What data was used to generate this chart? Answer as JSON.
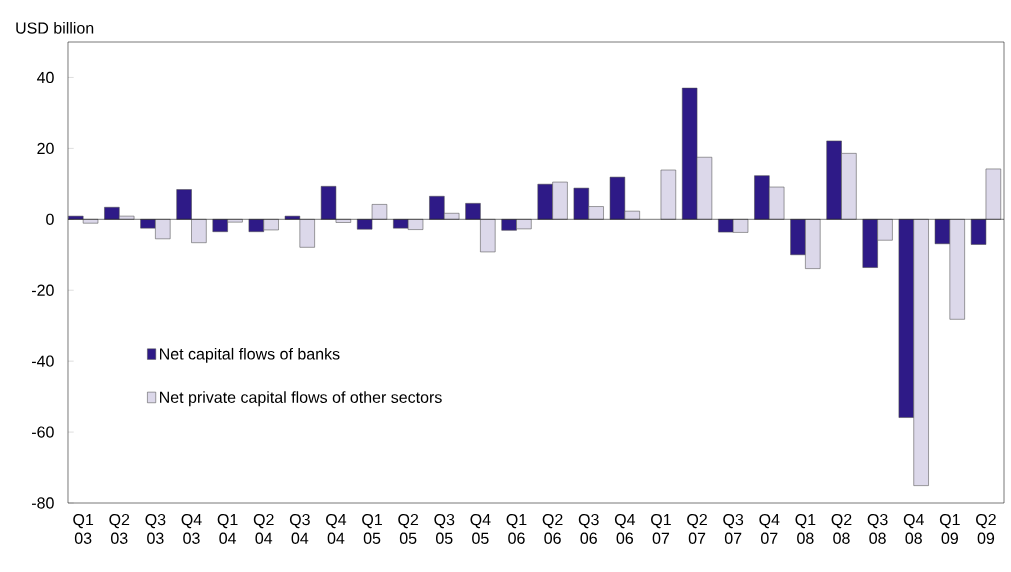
{
  "chart_data": {
    "type": "bar",
    "ylabel": "USD billion",
    "categories": [
      "Q1 03",
      "Q2 03",
      "Q3 03",
      "Q4 03",
      "Q1 04",
      "Q2 04",
      "Q3 04",
      "Q4 04",
      "Q1 05",
      "Q2 05",
      "Q3 05",
      "Q4 05",
      "Q1 06",
      "Q2 06",
      "Q3 06",
      "Q4 06",
      "Q1 07",
      "Q2 07",
      "Q3 07",
      "Q4 07",
      "Q1 08",
      "Q2 08",
      "Q3 08",
      "Q4 08",
      "Q1 09",
      "Q2 09"
    ],
    "series": [
      {
        "name": "Net capital flows of banks",
        "color": "#2e1a87",
        "values": [
          0.9,
          3.4,
          -2.5,
          8.4,
          -3.5,
          -3.5,
          0.9,
          9.3,
          -2.8,
          -2.5,
          6.5,
          4.5,
          -3.1,
          9.9,
          8.8,
          11.9,
          null,
          37.0,
          -3.6,
          12.3,
          -10.0,
          22.1,
          -13.6,
          -55.9,
          -6.9,
          -7.1
        ]
      },
      {
        "name": "Net private capital flows of other sectors",
        "color": "#dcd8ea",
        "values": [
          -1.1,
          0.9,
          -5.5,
          -6.6,
          -0.8,
          -3.0,
          -7.9,
          -0.9,
          4.2,
          -2.9,
          1.7,
          -9.2,
          -2.7,
          10.5,
          3.6,
          2.3,
          13.9,
          17.5,
          -3.7,
          9.1,
          -13.9,
          18.6,
          -5.9,
          -75.1,
          -28.2,
          14.2
        ]
      }
    ],
    "ylim": [
      -80,
      50
    ],
    "yticks": [
      -80,
      -60,
      -40,
      -20,
      0,
      20,
      40
    ],
    "ref_lines": [
      {
        "axis": "y",
        "value": 0,
        "color": "#000000"
      }
    ],
    "grid": false,
    "legend": "bottom left"
  }
}
